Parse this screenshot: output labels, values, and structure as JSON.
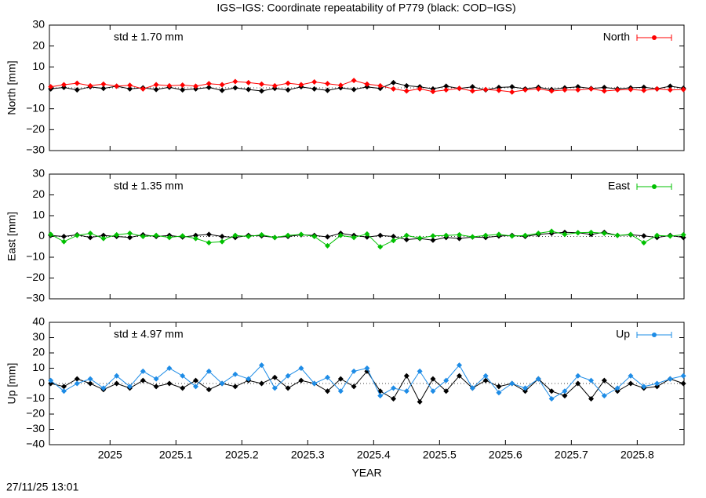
{
  "chart_data": [
    {
      "type": "line",
      "title": "IGS−IGS: Coordinate repeatability of P779 (black: COD−IGS)",
      "ylabel": "North [mm]",
      "annotation": "std ± 1.70 mm",
      "legend": "top right",
      "zero_line": true,
      "xlim": [
        2024.908,
        2025.871
      ],
      "ylim": [
        -30,
        30
      ],
      "yticks": [
        {
          "value": -30,
          "label": "−30"
        },
        {
          "value": -20,
          "label": "−20"
        },
        {
          "value": -10,
          "label": "−10"
        },
        0,
        10,
        20,
        30
      ],
      "x": [
        2024.91,
        2024.93,
        2024.95,
        2024.97,
        2024.99,
        2025.01,
        2025.03,
        2025.05,
        2025.07,
        2025.09,
        2025.11,
        2025.13,
        2025.15,
        2025.17,
        2025.19,
        2025.21,
        2025.23,
        2025.25,
        2025.27,
        2025.29,
        2025.31,
        2025.33,
        2025.35,
        2025.37,
        2025.39,
        2025.41,
        2025.43,
        2025.45,
        2025.47,
        2025.49,
        2025.51,
        2025.53,
        2025.55,
        2025.57,
        2025.59,
        2025.61,
        2025.63,
        2025.65,
        2025.67,
        2025.69,
        2025.71,
        2025.73,
        2025.75,
        2025.77,
        2025.79,
        2025.81,
        2025.83,
        2025.85,
        2025.87
      ],
      "series": [
        {
          "color": "#000000",
          "values": [
            -0.5,
            0.2,
            -1.0,
            0.5,
            -0.3,
            0.8,
            -0.5,
            0.0,
            -0.8,
            0.3,
            -1.0,
            -0.5,
            0.2,
            -1.2,
            0.0,
            -0.8,
            -1.5,
            -0.3,
            -1.0,
            0.5,
            -0.5,
            -1.2,
            0.0,
            -0.8,
            0.5,
            -0.3,
            2.5,
            1.0,
            0.5,
            -0.5,
            0.8,
            -0.3,
            0.5,
            -1.0,
            0.2,
            0.5,
            -0.5,
            0.3,
            -0.8,
            0.0,
            0.5,
            -0.3,
            0.2,
            -0.5,
            0.0,
            0.3,
            -0.5,
            0.8,
            -0.2
          ]
        },
        {
          "name": "North",
          "color": "#ff0000",
          "values": [
            0.5,
            1.5,
            2.2,
            1.0,
            1.8,
            0.8,
            1.2,
            -0.5,
            1.5,
            1.0,
            1.3,
            0.8,
            2.0,
            1.5,
            3.0,
            2.5,
            1.8,
            1.0,
            2.2,
            1.5,
            2.8,
            2.0,
            1.2,
            3.5,
            1.8,
            1.0,
            -0.5,
            -1.5,
            -0.5,
            -1.8,
            -1.0,
            -0.3,
            -1.5,
            -0.8,
            -1.2,
            -2.0,
            -1.0,
            -0.5,
            -1.5,
            -1.0,
            -1.0,
            -0.5,
            -1.5,
            -1.0,
            -0.8,
            -1.2,
            -0.5,
            -1.0,
            -0.8
          ]
        }
      ]
    },
    {
      "type": "line",
      "ylabel": "East [mm]",
      "annotation": "std ± 1.35 mm",
      "legend": "top right",
      "zero_line": true,
      "xlim": [
        2024.908,
        2025.871
      ],
      "ylim": [
        -30,
        30
      ],
      "yticks": [
        {
          "value": -30,
          "label": "−30"
        },
        {
          "value": -20,
          "label": "−20"
        },
        {
          "value": -10,
          "label": "−10"
        },
        0,
        10,
        20,
        30
      ],
      "x": [
        2024.91,
        2024.93,
        2024.95,
        2024.97,
        2024.99,
        2025.01,
        2025.03,
        2025.05,
        2025.07,
        2025.09,
        2025.11,
        2025.13,
        2025.15,
        2025.17,
        2025.19,
        2025.21,
        2025.23,
        2025.25,
        2025.27,
        2025.29,
        2025.31,
        2025.33,
        2025.35,
        2025.37,
        2025.39,
        2025.41,
        2025.43,
        2025.45,
        2025.47,
        2025.49,
        2025.51,
        2025.53,
        2025.55,
        2025.57,
        2025.59,
        2025.61,
        2025.63,
        2025.65,
        2025.67,
        2025.69,
        2025.71,
        2025.73,
        2025.75,
        2025.77,
        2025.79,
        2025.81,
        2025.83,
        2025.85,
        2025.87
      ],
      "series": [
        {
          "color": "#000000",
          "values": [
            0.5,
            0.0,
            0.8,
            -0.5,
            0.5,
            0.0,
            -0.5,
            0.8,
            0.0,
            0.5,
            -0.3,
            0.5,
            1.0,
            0.0,
            -0.5,
            0.5,
            0.3,
            -0.5,
            0.0,
            0.8,
            0.5,
            -0.2,
            1.5,
            0.5,
            -0.3,
            0.5,
            0.0,
            -1.5,
            -1.0,
            -1.8,
            -0.5,
            -1.0,
            -0.3,
            -0.5,
            0.2,
            0.5,
            0.0,
            1.0,
            1.5,
            2.0,
            1.8,
            1.0,
            2.0,
            0.5,
            0.8,
            0.3,
            -0.5,
            0.5,
            -0.5
          ]
        },
        {
          "name": "East",
          "color": "#00c000",
          "values": [
            1.0,
            -2.5,
            0.5,
            1.5,
            -1.0,
            0.8,
            1.5,
            0.0,
            0.5,
            -0.5,
            0.3,
            -1.0,
            -3.0,
            -2.5,
            0.5,
            0.0,
            0.8,
            -0.5,
            0.5,
            1.0,
            0.0,
            -4.5,
            0.5,
            -0.5,
            1.2,
            -5.0,
            -2.0,
            0.5,
            -0.8,
            0.3,
            0.5,
            0.8,
            -0.2,
            0.5,
            1.0,
            0.2,
            0.5,
            1.5,
            2.5,
            1.0,
            1.8,
            2.0,
            1.5,
            0.5,
            1.0,
            -3.0,
            0.5,
            0.2,
            0.8
          ]
        }
      ]
    },
    {
      "type": "line",
      "ylabel": "Up [mm]",
      "annotation": "std ± 4.97 mm",
      "legend": "top right",
      "zero_line": true,
      "xlabel": "YEAR",
      "xlim": [
        2024.908,
        2025.871
      ],
      "xticks": [
        2025,
        2025.1,
        2025.2,
        2025.3,
        2025.4,
        2025.5,
        2025.6,
        2025.7,
        2025.8
      ],
      "ylim": [
        -40,
        40
      ],
      "yticks": [
        {
          "value": -40,
          "label": "−40"
        },
        {
          "value": -30,
          "label": "−30"
        },
        {
          "value": -20,
          "label": "−20"
        },
        {
          "value": -10,
          "label": "−10"
        },
        0,
        10,
        20,
        30,
        40
      ],
      "x": [
        2024.91,
        2024.93,
        2024.95,
        2024.97,
        2024.99,
        2025.01,
        2025.03,
        2025.05,
        2025.07,
        2025.09,
        2025.11,
        2025.13,
        2025.15,
        2025.17,
        2025.19,
        2025.21,
        2025.23,
        2025.25,
        2025.27,
        2025.29,
        2025.31,
        2025.33,
        2025.35,
        2025.37,
        2025.39,
        2025.41,
        2025.43,
        2025.45,
        2025.47,
        2025.49,
        2025.51,
        2025.53,
        2025.55,
        2025.57,
        2025.59,
        2025.61,
        2025.63,
        2025.65,
        2025.67,
        2025.69,
        2025.71,
        2025.73,
        2025.75,
        2025.77,
        2025.79,
        2025.81,
        2025.83,
        2025.85,
        2025.87
      ],
      "series": [
        {
          "color": "#000000",
          "values": [
            0,
            -2,
            3,
            0,
            -4,
            0,
            -3,
            2,
            -2,
            0,
            -3,
            2,
            -4,
            0,
            -2,
            2,
            0,
            4,
            -3,
            2,
            0,
            -5,
            3,
            -2,
            8,
            -5,
            -10,
            5,
            -12,
            3,
            -5,
            5,
            -3,
            2,
            -2,
            0,
            -5,
            3,
            -5,
            -8,
            0,
            -10,
            2,
            -5,
            0,
            -3,
            -2,
            3,
            0
          ]
        },
        {
          "name": "Up",
          "color": "#1e8ce6",
          "values": [
            2,
            -5,
            0,
            3,
            -3,
            5,
            -2,
            8,
            3,
            10,
            5,
            -2,
            8,
            0,
            6,
            3,
            12,
            -3,
            5,
            10,
            0,
            4,
            -5,
            8,
            10,
            -8,
            -3,
            -5,
            8,
            -5,
            2,
            12,
            -3,
            5,
            -6,
            0,
            -3,
            3,
            -10,
            -5,
            5,
            2,
            -8,
            -3,
            5,
            -2,
            0,
            3,
            5
          ]
        }
      ]
    }
  ],
  "footer": "27/11/25 13:01"
}
